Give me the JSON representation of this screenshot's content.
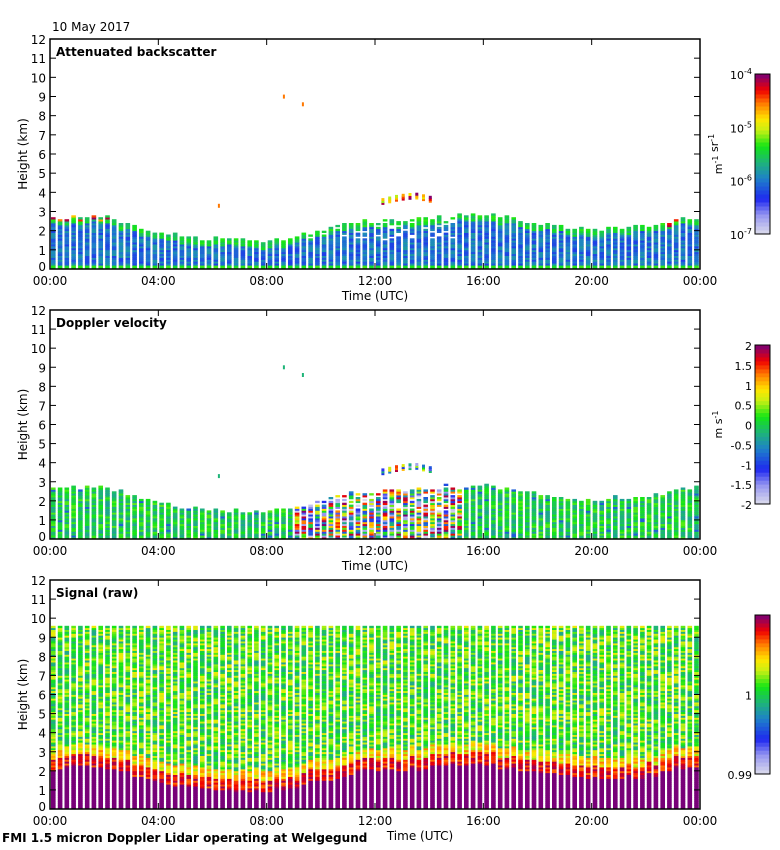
{
  "date": "10 May 2017",
  "footer": "FMI 1.5 micron Doppler Lidar operating at Welgegund",
  "chart_data": [
    {
      "type": "heatmap",
      "title": "Attenuated backscatter",
      "xlabel": "Time (UTC)",
      "ylabel": "Height (km)",
      "xlim": [
        0,
        24
      ],
      "ylim": [
        0,
        12
      ],
      "xticks": [
        "00:00",
        "04:00",
        "08:00",
        "12:00",
        "16:00",
        "20:00",
        "00:00"
      ],
      "yticks": [
        0,
        1,
        2,
        3,
        4,
        5,
        6,
        7,
        8,
        9,
        10,
        11,
        12
      ],
      "colorbar": {
        "label": "m-1 sr-1",
        "scale": "log",
        "ticks": [
          "10-7",
          "10-6",
          "10-5",
          "10-4"
        ],
        "range": [
          1e-07,
          0.0001
        ]
      },
      "mode": "backscatter",
      "boundary_layer_top_km": {
        "hours": [
          0,
          1,
          2,
          3,
          4,
          6,
          8,
          9,
          10,
          11,
          12,
          13,
          14,
          15,
          16,
          18,
          20,
          22,
          23,
          24
        ],
        "heights": [
          2.6,
          2.7,
          2.7,
          2.3,
          1.8,
          1.5,
          1.4,
          1.6,
          2.0,
          2.3,
          2.5,
          2.5,
          2.6,
          2.8,
          2.8,
          2.4,
          2.0,
          2.2,
          2.5,
          2.7
        ]
      },
      "cloud_layer": {
        "hours": [
          12.2,
          12.8,
          13.4,
          14.0
        ],
        "heights": [
          3.5,
          3.7,
          3.8,
          3.6
        ]
      },
      "isolated_returns": [
        {
          "hour": 6.2,
          "height": 3.4
        },
        {
          "hour": 8.6,
          "height": 9.1
        },
        {
          "hour": 9.3,
          "height": 8.7
        }
      ]
    },
    {
      "type": "heatmap",
      "title": "Doppler velocity",
      "xlabel": "Time (UTC)",
      "ylabel": "Height (km)",
      "xlim": [
        0,
        24
      ],
      "ylim": [
        0,
        12
      ],
      "xticks": [
        "00:00",
        "04:00",
        "08:00",
        "12:00",
        "16:00",
        "20:00",
        "00:00"
      ],
      "yticks": [
        0,
        1,
        2,
        3,
        4,
        5,
        6,
        7,
        8,
        9,
        10,
        11,
        12
      ],
      "colorbar": {
        "label": "m s-1",
        "scale": "linear",
        "ticks": [
          "-2",
          "-1.5",
          "-1",
          "-0.5",
          "0",
          "0.5",
          "1",
          "1.5",
          "2"
        ],
        "range": [
          -2,
          2
        ]
      },
      "mode": "velocity",
      "turbulent_period_hours": [
        9,
        15
      ]
    },
    {
      "type": "heatmap",
      "title": "Signal (raw)",
      "xlabel": "Time (UTC)",
      "ylabel": "Height (km)",
      "xlim": [
        0,
        24
      ],
      "ylim": [
        0,
        12
      ],
      "xticks": [
        "00:00",
        "04:00",
        "08:00",
        "12:00",
        "16:00",
        "20:00",
        "00:00"
      ],
      "yticks": [
        0,
        1,
        2,
        3,
        4,
        5,
        6,
        7,
        8,
        9,
        10,
        11,
        12
      ],
      "colorbar": {
        "label": "",
        "scale": "linear",
        "ticks": [
          "0.99",
          "1"
        ],
        "range": [
          0.99,
          1.01
        ]
      },
      "mode": "signal",
      "max_range_km": 9.5
    }
  ]
}
